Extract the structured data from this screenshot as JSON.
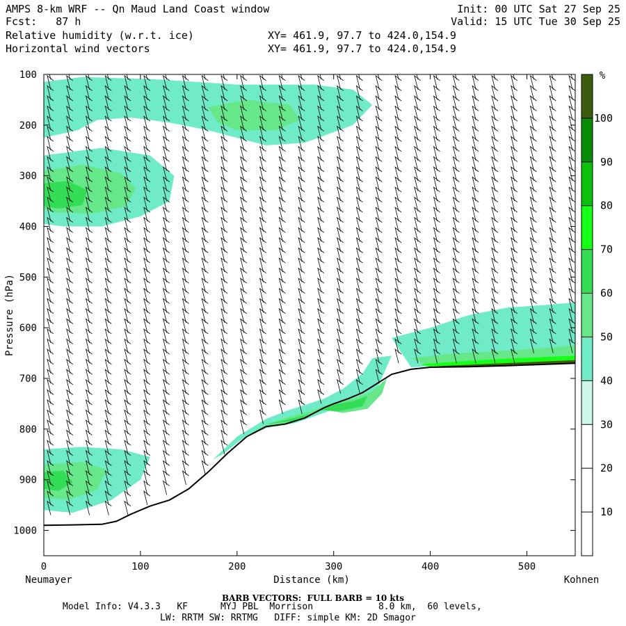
{
  "header": {
    "title": "AMPS 8-km WRF -- Qn Maud Land Coast window",
    "forecast": "Fcst:   87 h",
    "init": "Init: 00 UTC Sat 27 Sep 25",
    "valid": "Valid: 15 UTC Tue 30 Sep 25",
    "field1_name": "Relative humidity (w.r.t. ice)",
    "field1_xy": "XY= 461.9, 97.7 to 424.0,154.9",
    "field2_name": "Horizontal wind vectors",
    "field2_xy": "XY= 461.9, 97.7 to 424.0,154.9"
  },
  "footer": {
    "barb_note": "BARB VECTORS:  FULL BARB = 10 kts",
    "model_info_1": "Model Info: V4.3.3   KF      MYJ PBL  Morrison            8.0 km,  60 levels,",
    "model_info_2": "LW: RRTM SW: RRTMG   DIFF: simple KM: 2D Smagor"
  },
  "chart_data": {
    "type": "heatmap",
    "title": "Relative humidity (w.r.t. ice) cross-section with horizontal wind barbs",
    "xlabel": "Distance (km)",
    "ylabel": "Pressure (hPa)",
    "xlim": [
      0,
      550
    ],
    "ylim": [
      1050,
      100
    ],
    "x_ticks": [
      "0",
      "100",
      "200",
      "300",
      "400",
      "500"
    ],
    "x_tick_values": [
      0,
      100,
      200,
      300,
      400,
      500
    ],
    "y_ticks": [
      "100",
      "200",
      "300",
      "400",
      "500",
      "600",
      "700",
      "800",
      "900",
      "1000"
    ],
    "y_tick_values": [
      100,
      200,
      300,
      400,
      500,
      600,
      700,
      800,
      900,
      1000
    ],
    "left_end_label": "Neumayer",
    "right_end_label": "Kohnen",
    "colorbar": {
      "unit": "%",
      "levels": [
        "10",
        "20",
        "30",
        "40",
        "50",
        "60",
        "70",
        "80",
        "90",
        "100"
      ],
      "level_values": [
        10,
        20,
        30,
        40,
        50,
        60,
        70,
        80,
        90,
        100
      ],
      "colors": [
        "#ffffff",
        "#ffffff",
        "#ffffff",
        "#ccf7e6",
        "#70ebc8",
        "#66e88a",
        "#33dd55",
        "#16ff16",
        "#0ec00e",
        "#0a8c0a",
        "#3d5c0e"
      ]
    },
    "terrain_surface_pressure": [
      [
        0,
        990
      ],
      [
        30,
        989
      ],
      [
        60,
        988
      ],
      [
        75,
        982
      ],
      [
        90,
        968
      ],
      [
        110,
        952
      ],
      [
        130,
        940
      ],
      [
        150,
        918
      ],
      [
        170,
        885
      ],
      [
        190,
        848
      ],
      [
        210,
        815
      ],
      [
        230,
        795
      ],
      [
        250,
        790
      ],
      [
        270,
        778
      ],
      [
        290,
        758
      ],
      [
        300,
        750
      ],
      [
        315,
        740
      ],
      [
        330,
        728
      ],
      [
        345,
        710
      ],
      [
        360,
        692
      ],
      [
        380,
        682
      ],
      [
        400,
        678
      ],
      [
        440,
        677
      ],
      [
        480,
        675
      ],
      [
        520,
        672
      ],
      [
        550,
        670
      ]
    ],
    "humidity_regions": [
      {
        "level": 40,
        "points": [
          [
            0,
            115
          ],
          [
            40,
            105
          ],
          [
            120,
            110
          ],
          [
            200,
            120
          ],
          [
            280,
            120
          ],
          [
            320,
            130
          ],
          [
            340,
            160
          ],
          [
            320,
            200
          ],
          [
            270,
            235
          ],
          [
            230,
            240
          ],
          [
            200,
            225
          ],
          [
            170,
            210
          ],
          [
            130,
            195
          ],
          [
            90,
            185
          ],
          [
            55,
            190
          ],
          [
            35,
            210
          ],
          [
            0,
            225
          ]
        ]
      },
      {
        "level": 40,
        "points": [
          [
            0,
            260
          ],
          [
            60,
            245
          ],
          [
            110,
            260
          ],
          [
            135,
            300
          ],
          [
            130,
            350
          ],
          [
            100,
            380
          ],
          [
            60,
            400
          ],
          [
            20,
            400
          ],
          [
            0,
            395
          ]
        ]
      },
      {
        "level": 50,
        "points": [
          [
            0,
            290
          ],
          [
            40,
            278
          ],
          [
            80,
            295
          ],
          [
            95,
            325
          ],
          [
            85,
            360
          ],
          [
            50,
            375
          ],
          [
            10,
            372
          ],
          [
            0,
            365
          ]
        ]
      },
      {
        "level": 60,
        "points": [
          [
            0,
            315
          ],
          [
            25,
            310
          ],
          [
            45,
            328
          ],
          [
            40,
            358
          ],
          [
            15,
            365
          ],
          [
            0,
            360
          ]
        ]
      },
      {
        "level": 50,
        "points": [
          [
            170,
            165
          ],
          [
            210,
            150
          ],
          [
            255,
            160
          ],
          [
            265,
            190
          ],
          [
            240,
            210
          ],
          [
            200,
            210
          ],
          [
            180,
            195
          ]
        ]
      },
      {
        "level": 40,
        "points": [
          [
            0,
            840
          ],
          [
            40,
            835
          ],
          [
            80,
            840
          ],
          [
            110,
            855
          ],
          [
            100,
            900
          ],
          [
            70,
            940
          ],
          [
            30,
            965
          ],
          [
            0,
            960
          ]
        ]
      },
      {
        "level": 50,
        "points": [
          [
            0,
            870
          ],
          [
            40,
            865
          ],
          [
            65,
            880
          ],
          [
            55,
            920
          ],
          [
            25,
            940
          ],
          [
            0,
            935
          ]
        ]
      },
      {
        "level": 60,
        "points": [
          [
            0,
            885
          ],
          [
            20,
            882
          ],
          [
            30,
            905
          ],
          [
            15,
            922
          ],
          [
            0,
            918
          ]
        ]
      },
      {
        "level": 40,
        "points": [
          [
            175,
            860
          ],
          [
            200,
            815
          ],
          [
            230,
            780
          ],
          [
            250,
            765
          ],
          [
            290,
            740
          ],
          [
            310,
            720
          ],
          [
            330,
            690
          ],
          [
            340,
            660
          ],
          [
            360,
            655
          ],
          [
            345,
            720
          ],
          [
            320,
            745
          ],
          [
            290,
            768
          ],
          [
            260,
            788
          ],
          [
            230,
            798
          ],
          [
            205,
            820
          ],
          [
            185,
            850
          ]
        ]
      },
      {
        "level": 50,
        "points": [
          [
            210,
            812
          ],
          [
            230,
            792
          ],
          [
            250,
            778
          ],
          [
            275,
            765
          ],
          [
            300,
            748
          ],
          [
            320,
            740
          ],
          [
            340,
            725
          ],
          [
            355,
            700
          ],
          [
            350,
            730
          ],
          [
            335,
            760
          ],
          [
            310,
            768
          ],
          [
            290,
            762
          ],
          [
            260,
            785
          ],
          [
            230,
            796
          ]
        ]
      },
      {
        "level": 60,
        "points": [
          [
            230,
            790
          ],
          [
            255,
            780
          ],
          [
            280,
            768
          ],
          [
            300,
            752
          ],
          [
            320,
            745
          ],
          [
            335,
            735
          ],
          [
            330,
            755
          ],
          [
            305,
            765
          ],
          [
            285,
            762
          ],
          [
            260,
            784
          ]
        ]
      },
      {
        "level": 40,
        "points": [
          [
            360,
            620
          ],
          [
            400,
            600
          ],
          [
            440,
            575
          ],
          [
            480,
            560
          ],
          [
            520,
            555
          ],
          [
            550,
            550
          ],
          [
            550,
            668
          ],
          [
            480,
            672
          ],
          [
            400,
            676
          ],
          [
            380,
            678
          ]
        ]
      },
      {
        "level": 50,
        "points": [
          [
            380,
            660
          ],
          [
            430,
            650
          ],
          [
            480,
            645
          ],
          [
            520,
            640
          ],
          [
            550,
            635
          ],
          [
            550,
            668
          ],
          [
            480,
            673
          ],
          [
            400,
            677
          ]
        ]
      },
      {
        "level": 70,
        "points": [
          [
            390,
            672
          ],
          [
            440,
            665
          ],
          [
            490,
            660
          ],
          [
            550,
            655
          ],
          [
            550,
            668
          ],
          [
            480,
            673
          ],
          [
            400,
            677
          ]
        ]
      },
      {
        "level": 100,
        "points": [
          [
            405,
            676
          ],
          [
            450,
            672
          ],
          [
            500,
            668
          ],
          [
            550,
            664
          ],
          [
            550,
            670
          ],
          [
            480,
            675
          ],
          [
            420,
            677
          ]
        ]
      }
    ],
    "wind_barb_columns_km": [
      0,
      20,
      40,
      60,
      80,
      100,
      120,
      140,
      160,
      180,
      200,
      220,
      240,
      260,
      280,
      300,
      320,
      340,
      360,
      380,
      400,
      420,
      440,
      460,
      480,
      500,
      520,
      540
    ],
    "wind_barb_levels_hpa": [
      110,
      130,
      150,
      170,
      190,
      210,
      230,
      250,
      270,
      290,
      310,
      330,
      350,
      370,
      390,
      410,
      430,
      450,
      470,
      490,
      510,
      530,
      550,
      570,
      590,
      610,
      630,
      650,
      670,
      690,
      710,
      730,
      750,
      770,
      790,
      810,
      830,
      850,
      870,
      890,
      910,
      930,
      950,
      970,
      990
    ],
    "wind_speed_kts": 10
  }
}
